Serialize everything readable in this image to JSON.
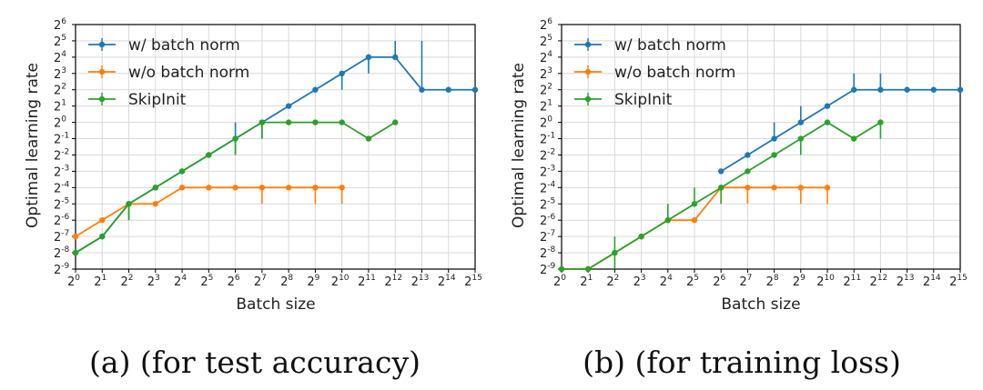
{
  "chart_data": [
    {
      "type": "line",
      "caption": "(a) (for test accuracy)",
      "xlabel": "Batch size",
      "ylabel": "Optimal learning rate",
      "x_scale": "log2",
      "y_scale": "log2",
      "xlim_exp": [
        0,
        15
      ],
      "ylim_exp": [
        -9,
        6
      ],
      "grid": true,
      "legend_position": "upper-left",
      "series": [
        {
          "name": "w/ batch norm",
          "color": "#1f77b4",
          "x_exp": [
            0,
            1,
            2,
            3,
            4,
            5,
            6,
            7,
            8,
            9,
            10,
            11,
            12,
            13,
            14,
            15
          ],
          "y_exp": [
            -8,
            -7,
            -5,
            -4,
            -3,
            -2,
            -1,
            0,
            1,
            2,
            3,
            4,
            4,
            2,
            2,
            2
          ],
          "err_up": [
            0,
            0,
            0,
            0,
            0,
            0,
            1,
            0,
            0,
            0,
            0,
            0,
            1,
            3,
            0,
            0
          ],
          "err_down": [
            0,
            0,
            1,
            0,
            0,
            0,
            1,
            1,
            0,
            0,
            1,
            1,
            0,
            0,
            0,
            0
          ]
        },
        {
          "name": "w/o batch norm",
          "color": "#ff7f0e",
          "x_exp": [
            0,
            1,
            2,
            3,
            4,
            5,
            6,
            7,
            8,
            9,
            10
          ],
          "y_exp": [
            -7,
            -6,
            -5,
            -5,
            -4,
            -4,
            -4,
            -4,
            -4,
            -4,
            -4
          ],
          "err_up": [
            0,
            0,
            0,
            0,
            0,
            0,
            0,
            0,
            0,
            0,
            0
          ],
          "err_down": [
            0,
            0,
            0,
            0,
            0,
            0,
            0,
            1,
            0,
            1,
            1
          ]
        },
        {
          "name": "SkipInit",
          "color": "#2ca02c",
          "x_exp": [
            0,
            1,
            2,
            3,
            4,
            5,
            6,
            7,
            8,
            9,
            10,
            11,
            12
          ],
          "y_exp": [
            -8,
            -7,
            -5,
            -4,
            -3,
            -2,
            -1,
            0,
            0,
            0,
            0,
            -1,
            0
          ],
          "err_up": [
            0,
            0,
            0,
            0,
            0,
            0,
            0,
            0,
            0,
            0,
            0,
            0,
            0
          ],
          "err_down": [
            0,
            0,
            1,
            0,
            0,
            0,
            1,
            1,
            0,
            0,
            0,
            0,
            0
          ]
        }
      ]
    },
    {
      "type": "line",
      "caption": "(b) (for training loss)",
      "xlabel": "Batch size",
      "ylabel": "Optimal learning rate",
      "x_scale": "log2",
      "y_scale": "log2",
      "xlim_exp": [
        0,
        15
      ],
      "ylim_exp": [
        -9,
        6
      ],
      "grid": true,
      "legend_position": "upper-left",
      "series": [
        {
          "name": "w/ batch norm",
          "color": "#1f77b4",
          "x_exp": [
            6,
            7,
            8,
            9,
            10,
            11,
            12,
            13,
            14,
            15
          ],
          "y_exp": [
            -3,
            -2,
            -1,
            0,
            1,
            2,
            2,
            2,
            2,
            2
          ],
          "err_up": [
            0,
            0,
            1,
            1,
            0,
            1,
            1,
            0,
            0,
            0
          ],
          "err_down": [
            0,
            0,
            0,
            0,
            0,
            0,
            0,
            0,
            0,
            0
          ]
        },
        {
          "name": "w/o batch norm",
          "color": "#ff7f0e",
          "x_exp": [
            0,
            1,
            2,
            3,
            4,
            5,
            6,
            7,
            8,
            9,
            10
          ],
          "y_exp": [
            -9,
            -9,
            -8,
            -7,
            -6,
            -6,
            -4,
            -4,
            -4,
            -4,
            -4
          ],
          "err_up": [
            0,
            0,
            0,
            0,
            0,
            0,
            0,
            0,
            0,
            0,
            0
          ],
          "err_down": [
            0,
            0,
            0,
            0,
            0,
            0,
            0,
            1,
            0,
            1,
            1
          ]
        },
        {
          "name": "SkipInit",
          "color": "#2ca02c",
          "x_exp": [
            0,
            1,
            2,
            3,
            4,
            5,
            6,
            7,
            8,
            9,
            10,
            11,
            12
          ],
          "y_exp": [
            -9,
            -9,
            -8,
            -7,
            -6,
            -5,
            -4,
            -3,
            -2,
            -1,
            0,
            -1,
            0
          ],
          "err_up": [
            0,
            0,
            1,
            0,
            1,
            1,
            0,
            0,
            0,
            0,
            0,
            0,
            0
          ],
          "err_down": [
            0,
            0,
            1,
            0,
            0,
            0,
            1,
            0,
            0,
            1,
            0,
            0,
            1
          ]
        }
      ]
    }
  ]
}
